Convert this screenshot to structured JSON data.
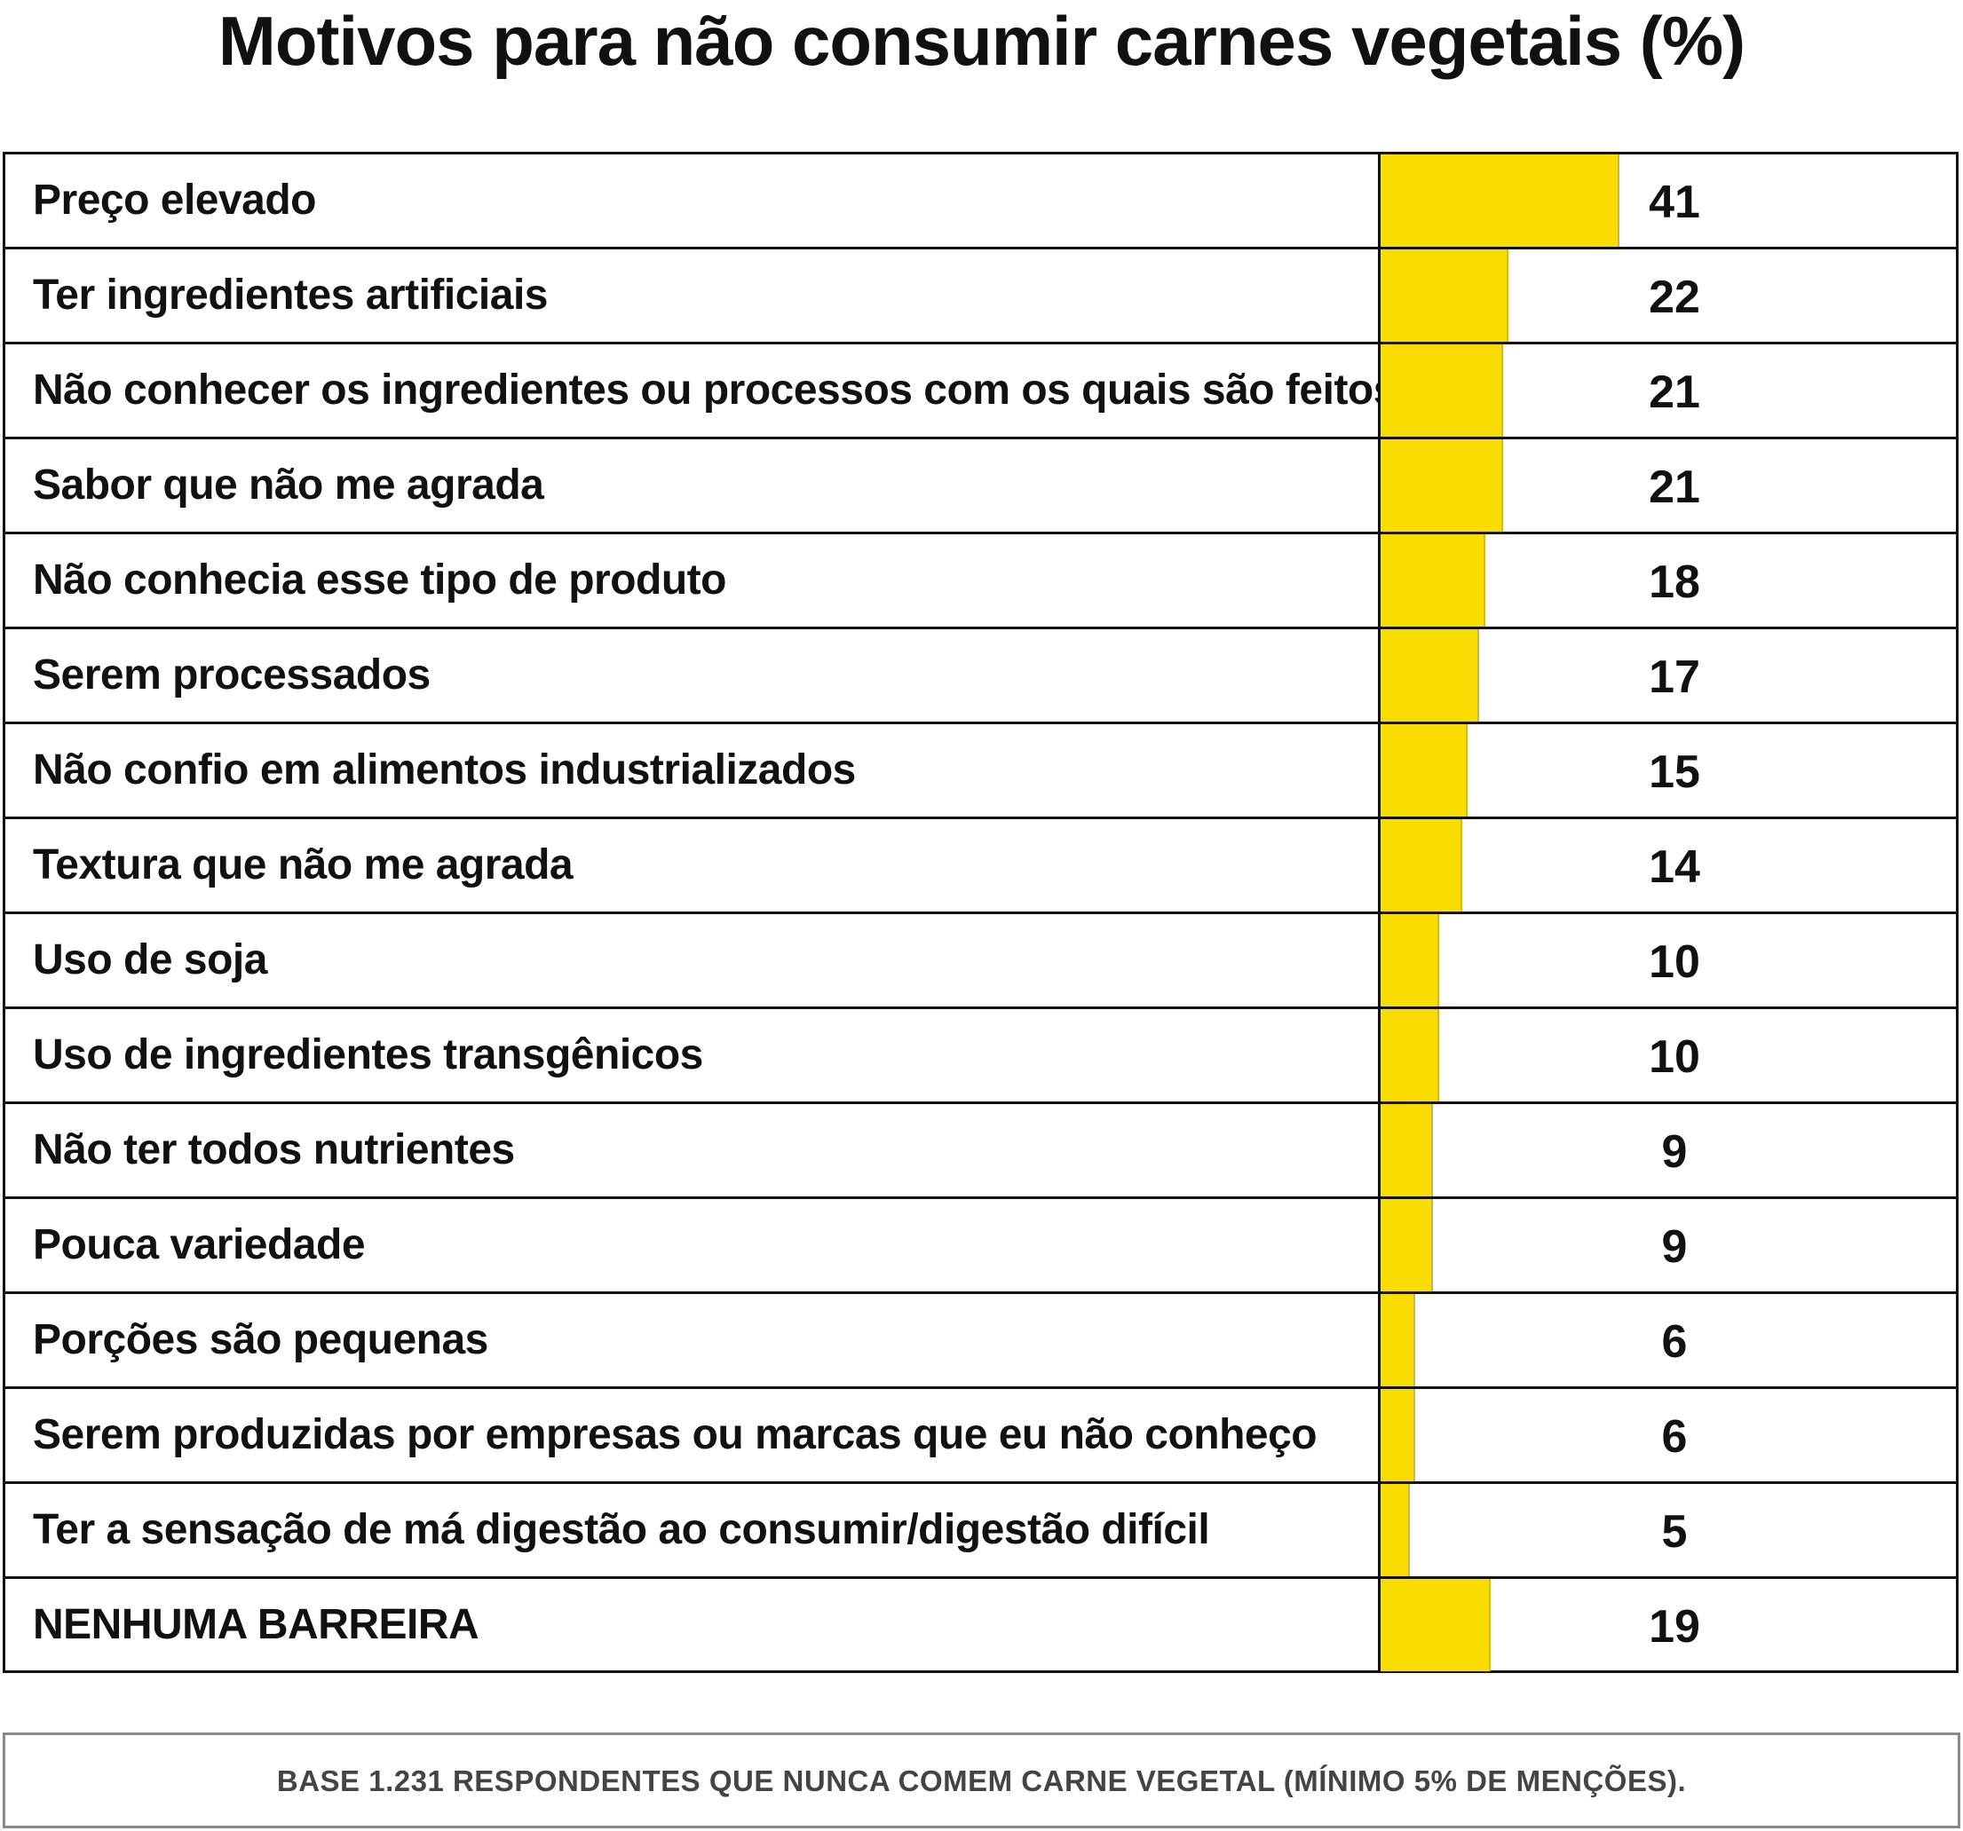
{
  "chart_data": {
    "type": "bar",
    "orientation": "horizontal",
    "title": "Motivos para não consumir carnes vegetais (%)",
    "categories": [
      "Preço elevado",
      "Ter ingredientes artificiais",
      "Não conhecer os ingredientes ou processos com os quais são feitos",
      "Sabor que não me agrada",
      "Não conhecia esse tipo de produto",
      "Serem processados",
      "Não confio em alimentos industrializados",
      "Textura que não me agrada",
      "Uso de soja",
      "Uso de ingredientes transgênicos",
      "Não ter todos nutrientes",
      "Pouca variedade",
      "Porções são pequenas",
      "Serem produzidas por empresas ou marcas que eu não conheço",
      "Ter a sensação de má digestão ao consumir/digestão difícil",
      "NENHUMA BARREIRA"
    ],
    "values": [
      41,
      22,
      21,
      21,
      18,
      17,
      15,
      14,
      10,
      10,
      9,
      9,
      6,
      6,
      5,
      19
    ],
    "bar_color": "#f9dd00",
    "grid": false,
    "legend": "none"
  },
  "note": "BASE 1.231 RESPONDENTES QUE NUNCA COMEM CARNE VEGETAL (MÍNIMO 5% DE MENÇÕES)."
}
